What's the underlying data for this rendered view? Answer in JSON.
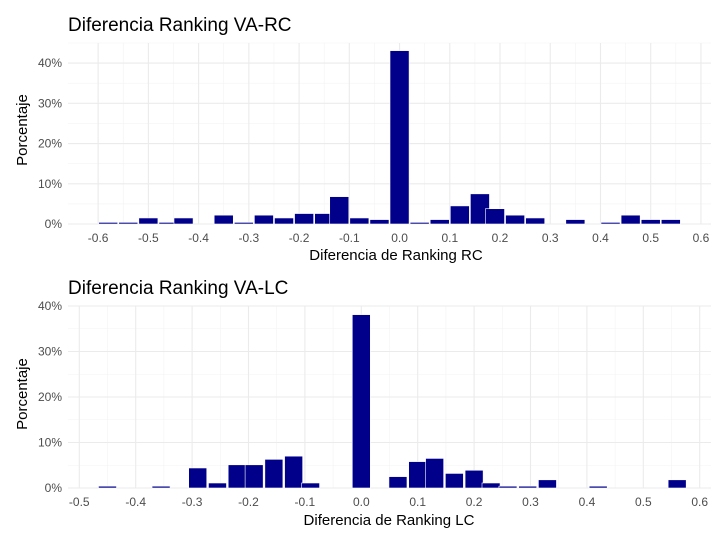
{
  "chart_data": [
    {
      "type": "bar",
      "title": "Diferencia Ranking VA-RC",
      "xlabel": "Diferencia de Ranking RC",
      "ylabel": "Porcentaje",
      "xlim": [
        -0.66,
        0.62
      ],
      "ylim": [
        0,
        45
      ],
      "grid": true,
      "bar_width": 0.038,
      "bar_color": "#00008B",
      "x_ticks": [
        -0.6,
        -0.5,
        -0.4,
        -0.3,
        -0.2,
        -0.1,
        0.0,
        0.1,
        0.2,
        0.3,
        0.4,
        0.5,
        0.6
      ],
      "x_tick_labels": [
        "-0.6",
        "-0.5",
        "-0.4",
        "-0.3",
        "-0.2",
        "-0.1",
        "0.0",
        "0.1",
        "0.2",
        "0.3",
        "0.4",
        "0.5",
        "0.6"
      ],
      "y_ticks": [
        0,
        10,
        20,
        30,
        40
      ],
      "y_tick_labels": [
        "0%",
        "10%",
        "20%",
        "30%",
        "40%"
      ],
      "x": [
        -0.58,
        -0.54,
        -0.5,
        -0.46,
        -0.43,
        -0.35,
        -0.31,
        -0.27,
        -0.23,
        -0.19,
        -0.15,
        -0.12,
        -0.08,
        -0.04,
        0.0,
        0.04,
        0.08,
        0.12,
        0.16,
        0.19,
        0.23,
        0.27,
        0.35,
        0.42,
        0.46,
        0.5,
        0.54
      ],
      "values": [
        0.4,
        0.4,
        1.5,
        0.4,
        1.5,
        2.2,
        0.4,
        2.2,
        1.5,
        2.6,
        2.6,
        6.8,
        1.5,
        1.1,
        43.1,
        0.4,
        1.1,
        4.5,
        7.5,
        3.8,
        2.2,
        1.5,
        1.1,
        0.4,
        2.2,
        1.1,
        1.1
      ]
    },
    {
      "type": "bar",
      "title": "Diferencia Ranking VA-LC",
      "xlabel": "Diferencia de Ranking LC",
      "ylabel": "Porcentaje",
      "xlim": [
        -0.52,
        0.62
      ],
      "ylim": [
        0,
        40
      ],
      "grid": true,
      "bar_width": 0.032,
      "bar_color": "#00008B",
      "x_ticks": [
        -0.5,
        -0.4,
        -0.3,
        -0.2,
        -0.1,
        0.0,
        0.1,
        0.2,
        0.3,
        0.4,
        0.5,
        0.6
      ],
      "x_tick_labels": [
        "-0.5",
        "-0.4",
        "-0.3",
        "-0.2",
        "-0.1",
        "0.0",
        "0.1",
        "0.2",
        "0.3",
        "0.4",
        "0.5",
        "0.6"
      ],
      "y_ticks": [
        0,
        10,
        20,
        30,
        40
      ],
      "y_tick_labels": [
        "0%",
        "10%",
        "20%",
        "30%",
        "40%"
      ],
      "x": [
        -0.45,
        -0.355,
        -0.29,
        -0.255,
        -0.22,
        -0.19,
        -0.155,
        -0.12,
        -0.09,
        0.0,
        0.065,
        0.1,
        0.13,
        0.165,
        0.2,
        0.23,
        0.26,
        0.295,
        0.33,
        0.42,
        0.56
      ],
      "values": [
        0.4,
        0.4,
        4.4,
        1.1,
        5.1,
        5.1,
        6.3,
        7.0,
        1.1,
        38.1,
        2.5,
        5.8,
        6.5,
        3.2,
        3.9,
        1.1,
        0.4,
        0.4,
        1.8,
        0.4,
        1.8
      ]
    }
  ]
}
